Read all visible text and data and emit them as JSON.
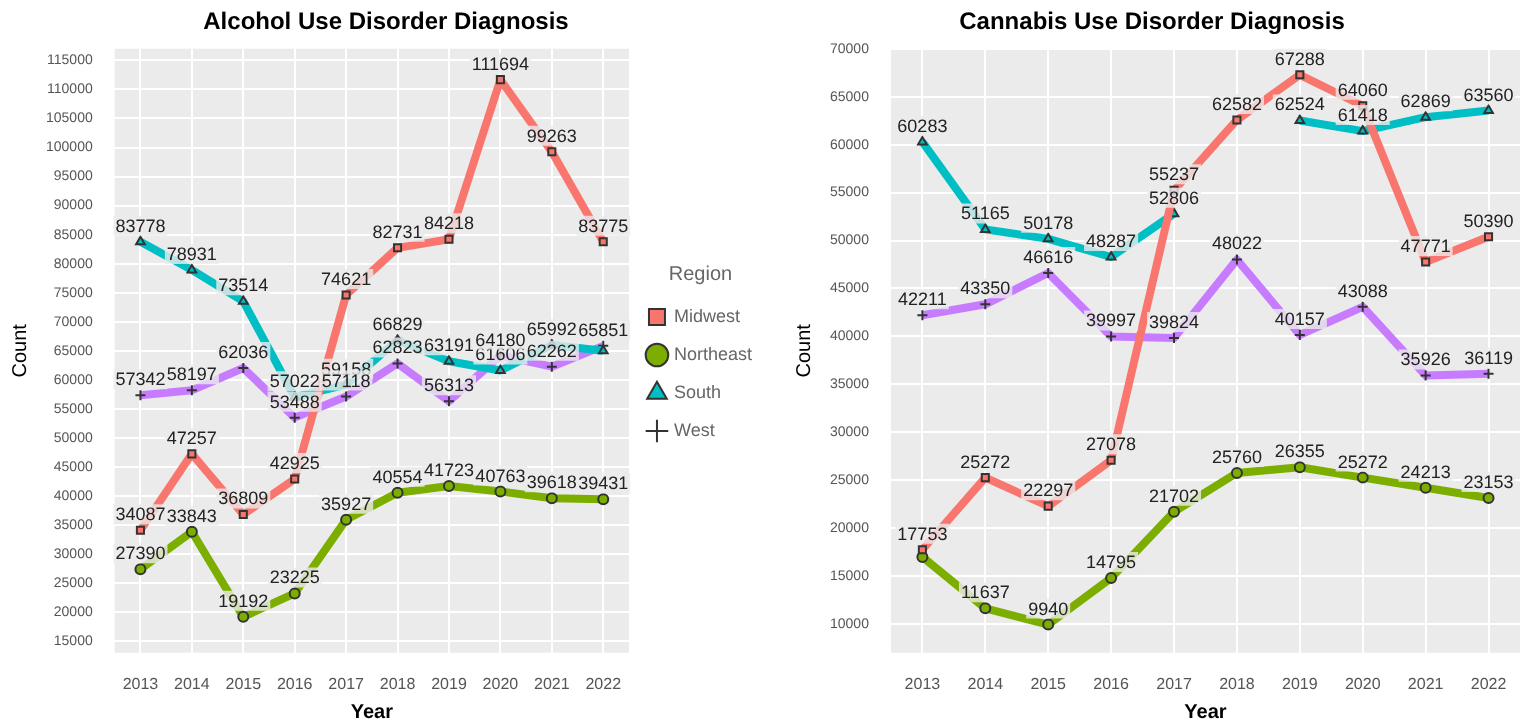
{
  "chart_data": [
    {
      "type": "line",
      "title": "Alcohol Use Disorder Diagnosis",
      "xlabel": "Year",
      "ylabel": "Count",
      "legend_title": "Region",
      "legend": "right",
      "grid": true,
      "data_labels": true,
      "categories": [
        "2013",
        "2014",
        "2015",
        "2016",
        "2017",
        "2018",
        "2019",
        "2020",
        "2021",
        "2022"
      ],
      "ylim": [
        13000,
        117000
      ],
      "yticks": [
        15000,
        20000,
        25000,
        30000,
        35000,
        40000,
        45000,
        50000,
        55000,
        60000,
        65000,
        70000,
        75000,
        80000,
        85000,
        90000,
        95000,
        100000,
        105000,
        110000,
        115000
      ],
      "series": [
        {
          "name": "Midwest",
          "color": "#f8766d",
          "marker": "square",
          "values": [
            34087,
            47257,
            36809,
            42925,
            74621,
            82731,
            84218,
            111694,
            99263,
            83775
          ]
        },
        {
          "name": "Northeast",
          "color": "#7cae00",
          "marker": "circle",
          "values": [
            27390,
            33843,
            19192,
            23225,
            35927,
            40554,
            41723,
            40763,
            39618,
            39431
          ]
        },
        {
          "name": "South",
          "color": "#00bfc4",
          "marker": "triangle",
          "values": [
            83778,
            78931,
            73514,
            57022,
            59158,
            66829,
            63191,
            61606,
            65992,
            65000
          ],
          "value_labels": [
            "83778",
            "78931",
            "73514",
            "57022",
            "59158",
            "66829",
            "63191",
            "61606",
            "65992",
            null
          ]
        },
        {
          "name": "West",
          "color": "#c77cff",
          "marker": "cross",
          "values": [
            57342,
            58197,
            62036,
            53488,
            57118,
            62823,
            56313,
            64180,
            62262,
            65851
          ]
        }
      ]
    },
    {
      "type": "line",
      "title": "Cannabis Use Disorder Diagnosis",
      "xlabel": "Year",
      "ylabel": "Count",
      "grid": true,
      "data_labels": true,
      "categories": [
        "2013",
        "2014",
        "2015",
        "2016",
        "2017",
        "2018",
        "2019",
        "2020",
        "2021",
        "2022"
      ],
      "ylim": [
        7000,
        70000
      ],
      "yticks": [
        10000,
        15000,
        20000,
        25000,
        30000,
        35000,
        40000,
        45000,
        50000,
        55000,
        60000,
        65000,
        70000
      ],
      "series": [
        {
          "color": "#f8766d",
          "marker": "square",
          "values": [
            17753,
            25272,
            22297,
            27078,
            55237,
            62582,
            67288,
            64060,
            47771,
            50390
          ]
        },
        {
          "color": "#7cae00",
          "marker": "circle",
          "values": [
            17000,
            11637,
            9940,
            14795,
            21702,
            25760,
            26355,
            25272,
            24213,
            23153
          ],
          "value_labels": [
            null,
            "11637",
            "9940",
            "14795",
            "21702",
            "25760",
            "26355",
            "25272",
            "24213",
            "23153"
          ]
        },
        {
          "color": "#00bfc4",
          "marker": "triangle",
          "values": [
            60283,
            51165,
            50178,
            48287,
            52806,
            null,
            62524,
            61418,
            62869,
            63560
          ],
          "value_labels": [
            "60283",
            "51165",
            "50178",
            "48287",
            "52806",
            null,
            "62524",
            "61418",
            "62869",
            "63560"
          ]
        },
        {
          "color": "#c77cff",
          "marker": "cross",
          "values": [
            42211,
            43350,
            46616,
            39997,
            39824,
            48022,
            40157,
            43088,
            35926,
            36119
          ]
        }
      ]
    }
  ]
}
